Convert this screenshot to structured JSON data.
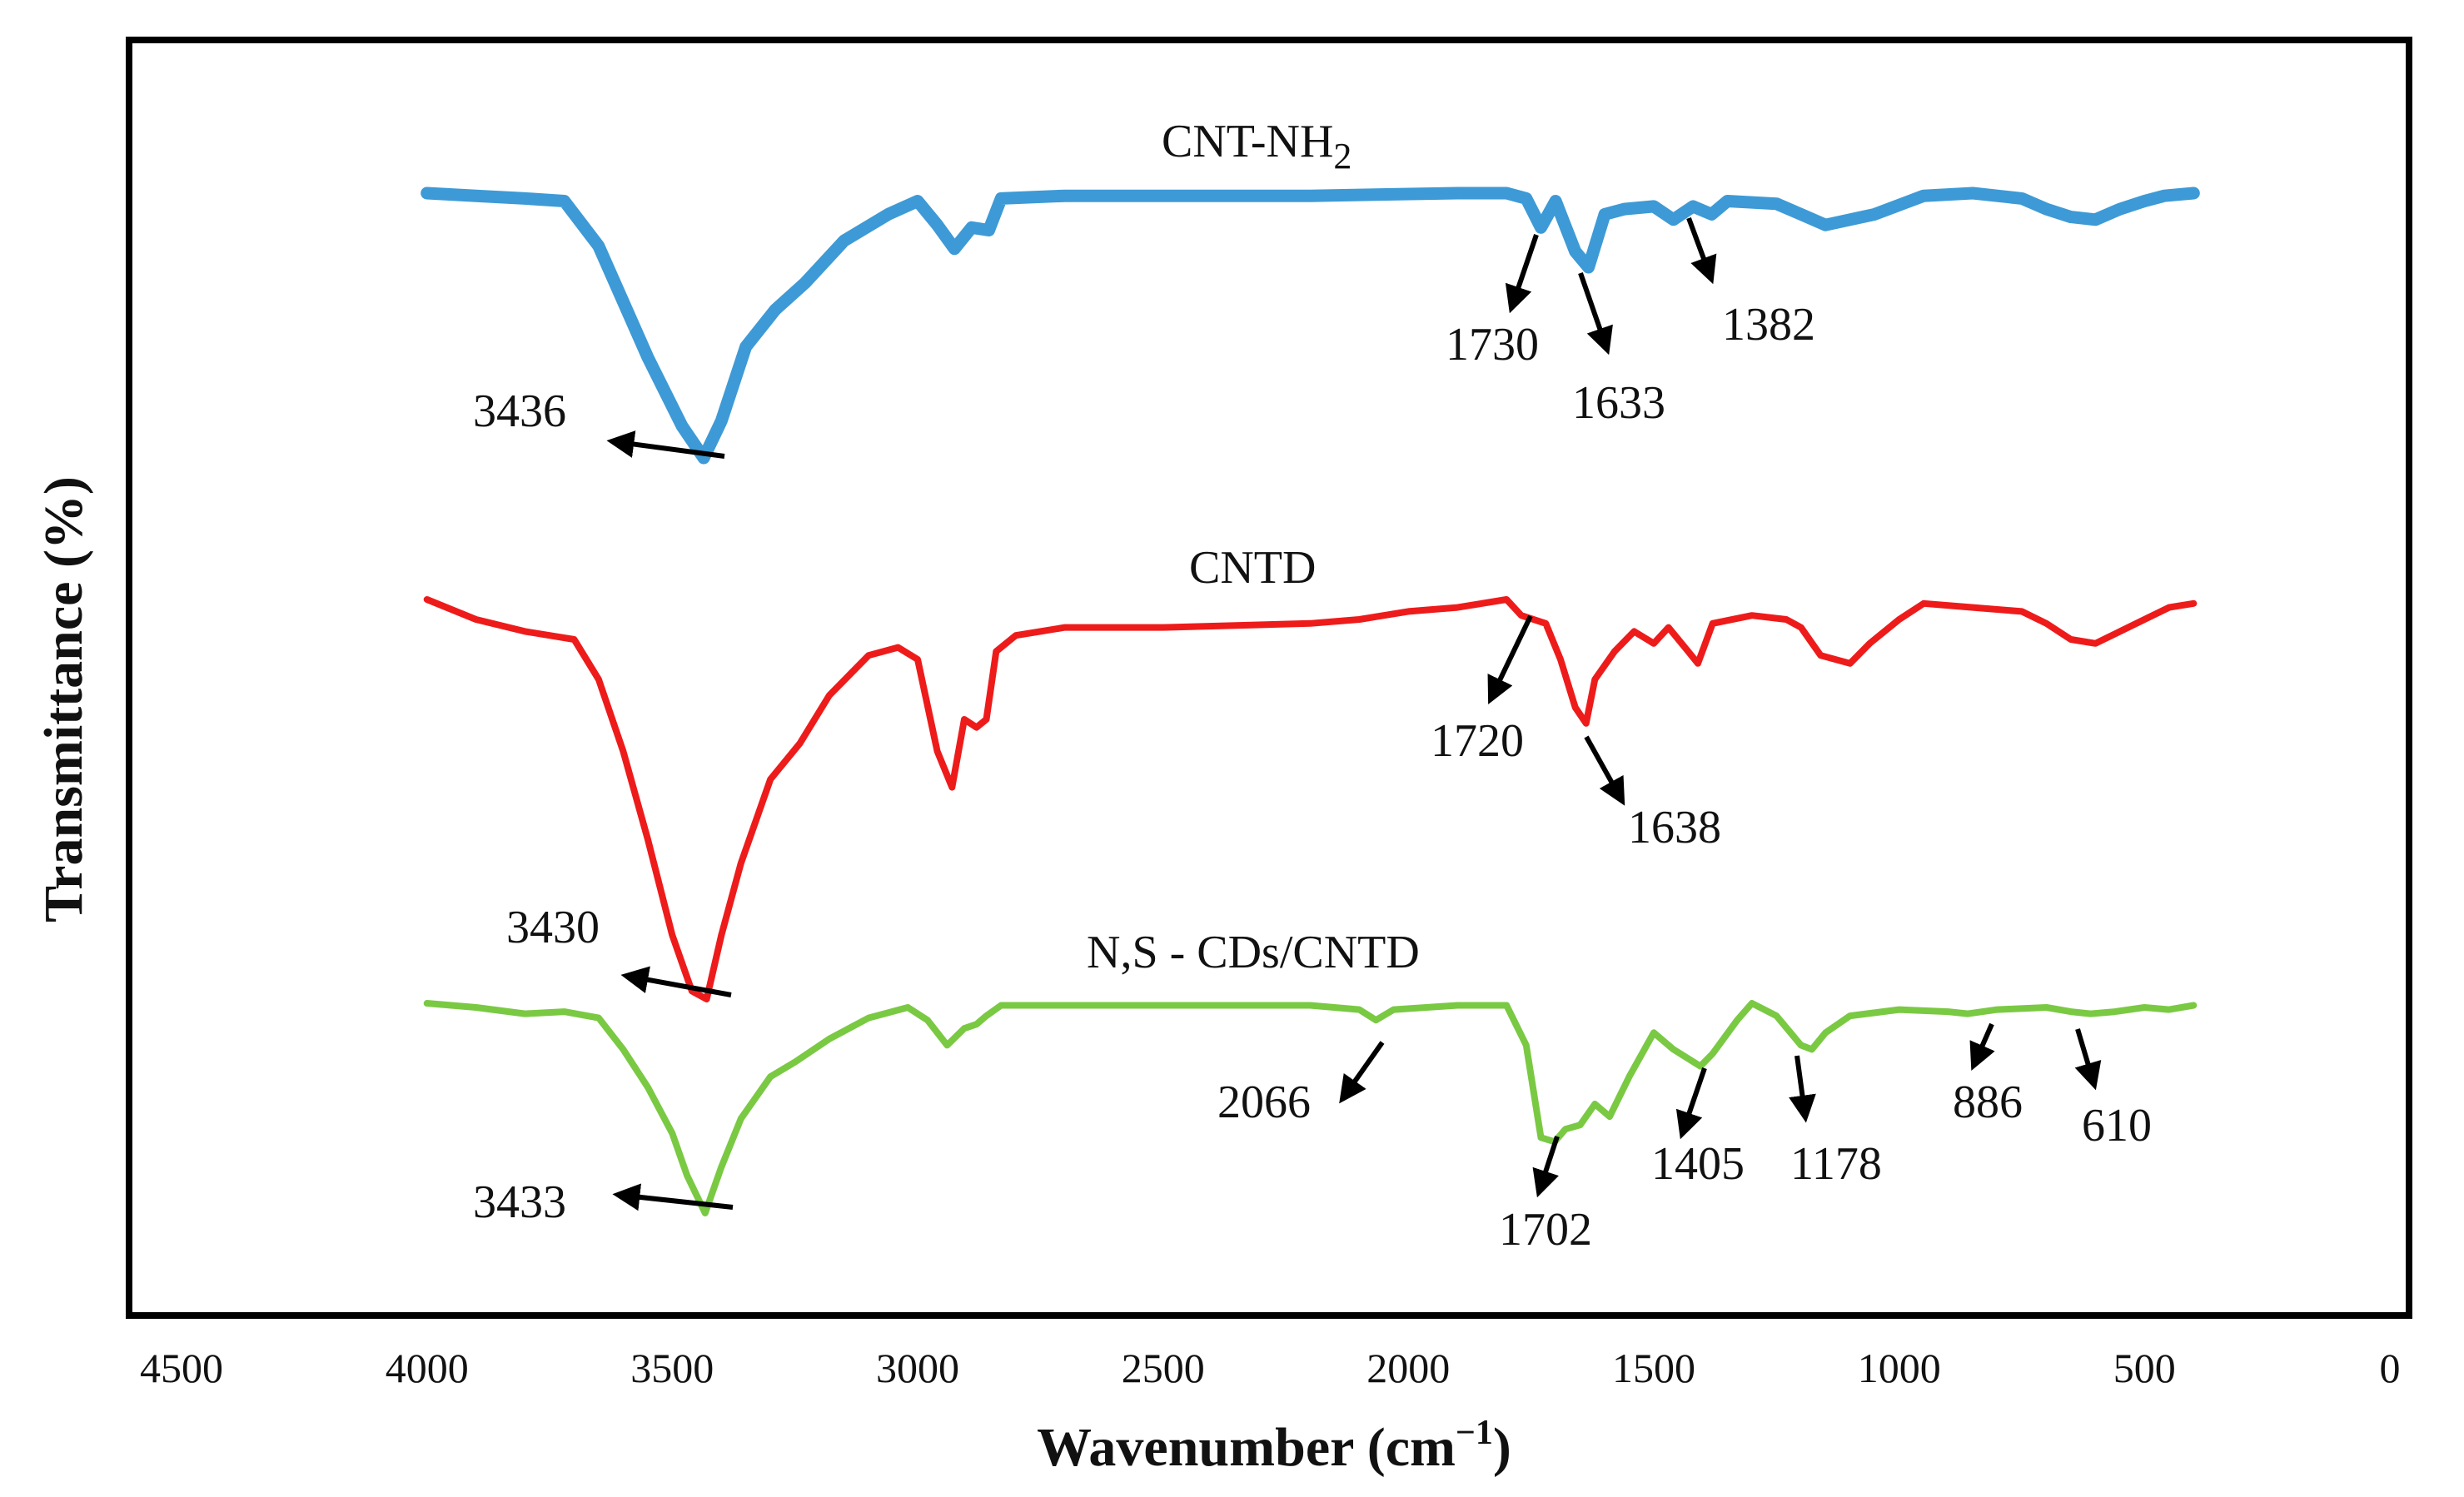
{
  "chart_data": {
    "type": "line",
    "title": "",
    "xlabel": "Wavenumber (cm",
    "xlabel_unit_sup": "−1",
    "xlabel_close": ")",
    "ylabel": "Transmittance (%)",
    "xlim": [
      4500,
      0
    ],
    "x_ticks": [
      {
        "value": 4500,
        "label": "4500"
      },
      {
        "value": 4000,
        "label": "4000"
      },
      {
        "value": 3500,
        "label": "3500"
      },
      {
        "value": 3000,
        "label": "3000"
      },
      {
        "value": 2500,
        "label": "2500"
      },
      {
        "value": 2000,
        "label": "2000"
      },
      {
        "value": 1500,
        "label": "1500"
      },
      {
        "value": 1000,
        "label": "1000"
      },
      {
        "value": 500,
        "label": "500"
      },
      {
        "value": 0,
        "label": "0"
      }
    ],
    "series": [
      {
        "name": "CNT-NH",
        "name_sub": "2",
        "color": "#3d9ad6",
        "points": [
          [
            4000,
            0.0
          ],
          [
            3900,
            0.01
          ],
          [
            3800,
            0.02
          ],
          [
            3720,
            0.03
          ],
          [
            3650,
            0.2
          ],
          [
            3550,
            0.62
          ],
          [
            3480,
            0.88
          ],
          [
            3436,
            1.0
          ],
          [
            3400,
            0.86
          ],
          [
            3350,
            0.58
          ],
          [
            3290,
            0.44
          ],
          [
            3230,
            0.34
          ],
          [
            3150,
            0.18
          ],
          [
            3060,
            0.08
          ],
          [
            3000,
            0.03
          ],
          [
            2960,
            0.12
          ],
          [
            2925,
            0.21
          ],
          [
            2890,
            0.13
          ],
          [
            2855,
            0.14
          ],
          [
            2830,
            0.02
          ],
          [
            2700,
            0.01
          ],
          [
            2500,
            0.01
          ],
          [
            2200,
            0.01
          ],
          [
            1900,
            0.0
          ],
          [
            1800,
            0.0
          ],
          [
            1760,
            0.02
          ],
          [
            1730,
            0.13
          ],
          [
            1700,
            0.03
          ],
          [
            1660,
            0.22
          ],
          [
            1633,
            0.28
          ],
          [
            1600,
            0.08
          ],
          [
            1560,
            0.06
          ],
          [
            1500,
            0.05
          ],
          [
            1460,
            0.1
          ],
          [
            1420,
            0.05
          ],
          [
            1382,
            0.08
          ],
          [
            1350,
            0.03
          ],
          [
            1250,
            0.04
          ],
          [
            1200,
            0.08
          ],
          [
            1150,
            0.12
          ],
          [
            1100,
            0.1
          ],
          [
            1050,
            0.08
          ],
          [
            950,
            0.01
          ],
          [
            850,
            0.0
          ],
          [
            750,
            0.02
          ],
          [
            700,
            0.06
          ],
          [
            650,
            0.09
          ],
          [
            600,
            0.1
          ],
          [
            550,
            0.06
          ],
          [
            500,
            0.03
          ],
          [
            460,
            0.01
          ],
          [
            400,
            0.0
          ]
        ]
      },
      {
        "name": "CNTD",
        "color": "#ee1b1b",
        "points": [
          [
            4000,
            0.0
          ],
          [
            3900,
            0.05
          ],
          [
            3800,
            0.08
          ],
          [
            3700,
            0.1
          ],
          [
            3650,
            0.2
          ],
          [
            3600,
            0.38
          ],
          [
            3550,
            0.6
          ],
          [
            3500,
            0.84
          ],
          [
            3460,
            0.98
          ],
          [
            3430,
            1.0
          ],
          [
            3400,
            0.84
          ],
          [
            3360,
            0.66
          ],
          [
            3300,
            0.45
          ],
          [
            3240,
            0.36
          ],
          [
            3180,
            0.24
          ],
          [
            3100,
            0.14
          ],
          [
            3040,
            0.12
          ],
          [
            3000,
            0.15
          ],
          [
            2960,
            0.38
          ],
          [
            2930,
            0.47
          ],
          [
            2905,
            0.3
          ],
          [
            2880,
            0.32
          ],
          [
            2860,
            0.3
          ],
          [
            2840,
            0.13
          ],
          [
            2800,
            0.09
          ],
          [
            2700,
            0.07
          ],
          [
            2500,
            0.07
          ],
          [
            2200,
            0.06
          ],
          [
            2100,
            0.05
          ],
          [
            2000,
            0.03
          ],
          [
            1900,
            0.02
          ],
          [
            1800,
            0.0
          ],
          [
            1770,
            0.04
          ],
          [
            1720,
            0.06
          ],
          [
            1690,
            0.15
          ],
          [
            1660,
            0.27
          ],
          [
            1638,
            0.31
          ],
          [
            1620,
            0.2
          ],
          [
            1580,
            0.13
          ],
          [
            1540,
            0.08
          ],
          [
            1500,
            0.11
          ],
          [
            1470,
            0.07
          ],
          [
            1430,
            0.13
          ],
          [
            1410,
            0.16
          ],
          [
            1380,
            0.06
          ],
          [
            1300,
            0.04
          ],
          [
            1230,
            0.05
          ],
          [
            1200,
            0.07
          ],
          [
            1160,
            0.14
          ],
          [
            1100,
            0.16
          ],
          [
            1060,
            0.11
          ],
          [
            1000,
            0.05
          ],
          [
            950,
            0.01
          ],
          [
            850,
            0.02
          ],
          [
            750,
            0.03
          ],
          [
            700,
            0.06
          ],
          [
            650,
            0.1
          ],
          [
            600,
            0.11
          ],
          [
            550,
            0.08
          ],
          [
            500,
            0.05
          ],
          [
            450,
            0.02
          ],
          [
            400,
            0.01
          ]
        ]
      },
      {
        "name": "N,S - CDs/CNTD",
        "color": "#7ac943",
        "points": [
          [
            4000,
            0.0
          ],
          [
            3900,
            0.02
          ],
          [
            3800,
            0.05
          ],
          [
            3720,
            0.04
          ],
          [
            3650,
            0.07
          ],
          [
            3600,
            0.22
          ],
          [
            3550,
            0.4
          ],
          [
            3500,
            0.62
          ],
          [
            3470,
            0.82
          ],
          [
            3433,
            1.0
          ],
          [
            3400,
            0.78
          ],
          [
            3360,
            0.55
          ],
          [
            3300,
            0.35
          ],
          [
            3250,
            0.28
          ],
          [
            3180,
            0.17
          ],
          [
            3100,
            0.07
          ],
          [
            3020,
            0.02
          ],
          [
            2980,
            0.08
          ],
          [
            2940,
            0.2
          ],
          [
            2905,
            0.12
          ],
          [
            2880,
            0.1
          ],
          [
            2860,
            0.06
          ],
          [
            2830,
            0.01
          ],
          [
            2700,
            0.01
          ],
          [
            2400,
            0.01
          ],
          [
            2200,
            0.01
          ],
          [
            2100,
            0.03
          ],
          [
            2066,
            0.08
          ],
          [
            2030,
            0.03
          ],
          [
            1900,
            0.01
          ],
          [
            1800,
            0.01
          ],
          [
            1760,
            0.2
          ],
          [
            1730,
            0.64
          ],
          [
            1702,
            0.66
          ],
          [
            1680,
            0.6
          ],
          [
            1650,
            0.58
          ],
          [
            1620,
            0.48
          ],
          [
            1590,
            0.54
          ],
          [
            1550,
            0.35
          ],
          [
            1500,
            0.14
          ],
          [
            1460,
            0.22
          ],
          [
            1405,
            0.3
          ],
          [
            1380,
            0.24
          ],
          [
            1330,
            0.08
          ],
          [
            1300,
            0.0
          ],
          [
            1250,
            0.06
          ],
          [
            1200,
            0.2
          ],
          [
            1178,
            0.22
          ],
          [
            1150,
            0.14
          ],
          [
            1100,
            0.06
          ],
          [
            1000,
            0.03
          ],
          [
            900,
            0.04
          ],
          [
            860,
            0.05
          ],
          [
            800,
            0.03
          ],
          [
            700,
            0.02
          ],
          [
            650,
            0.04
          ],
          [
            610,
            0.05
          ],
          [
            560,
            0.04
          ],
          [
            500,
            0.02
          ],
          [
            450,
            0.03
          ],
          [
            400,
            0.01
          ]
        ]
      }
    ],
    "annotations": [
      {
        "series": 0,
        "label": "3436"
      },
      {
        "series": 0,
        "label": "1730"
      },
      {
        "series": 0,
        "label": "1633"
      },
      {
        "series": 0,
        "label": "1382"
      },
      {
        "series": 1,
        "label": "3430"
      },
      {
        "series": 1,
        "label": "1720"
      },
      {
        "series": 1,
        "label": "1638"
      },
      {
        "series": 2,
        "label": "3433"
      },
      {
        "series": 2,
        "label": "2066"
      },
      {
        "series": 2,
        "label": "1702"
      },
      {
        "series": 2,
        "label": "1405"
      },
      {
        "series": 2,
        "label": "1178"
      },
      {
        "series": 2,
        "label": "886"
      },
      {
        "series": 2,
        "label": "610"
      }
    ]
  }
}
